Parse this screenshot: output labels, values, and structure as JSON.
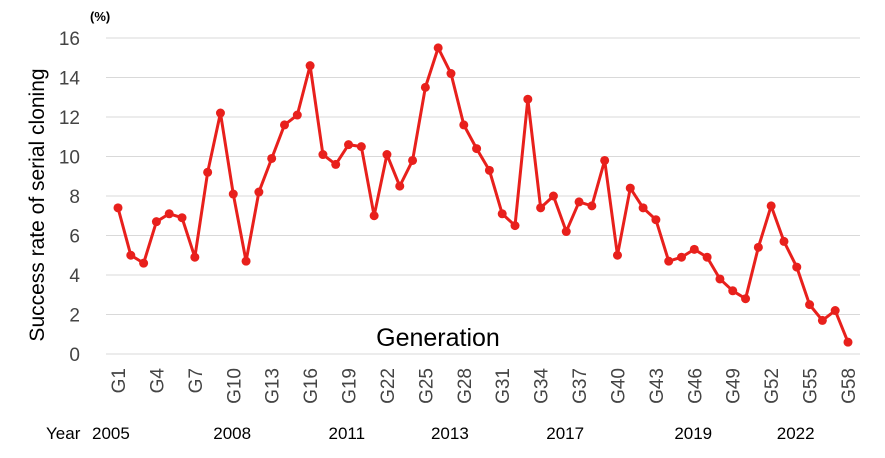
{
  "chart_data": {
    "type": "line",
    "unit_label": "(%)",
    "ylabel": "Success rate of serial cloning",
    "xlabel": "Generation",
    "ylim": [
      0,
      16
    ],
    "yticks": [
      0,
      2,
      4,
      6,
      8,
      10,
      12,
      14,
      16
    ],
    "grid": true,
    "line_color": "#e8201c",
    "grid_color": "#d9d9d9",
    "x_tick_labels": [
      "G1",
      "G4",
      "G7",
      "G10",
      "G13",
      "G16",
      "G19",
      "G22",
      "G25",
      "G28",
      "G31",
      "G34",
      "G37",
      "G40",
      "G43",
      "G46",
      "G49",
      "G52",
      "G55",
      "G58"
    ],
    "x_tick_generations": [
      1,
      4,
      7,
      10,
      13,
      16,
      19,
      22,
      25,
      28,
      31,
      34,
      37,
      40,
      43,
      46,
      49,
      52,
      55,
      58
    ],
    "year_prefix": "Year",
    "years": [
      {
        "label": "2005",
        "generation": 1
      },
      {
        "label": "2008",
        "generation": 10
      },
      {
        "label": "2011",
        "generation": 19
      },
      {
        "label": "2013",
        "generation": 27
      },
      {
        "label": "2017",
        "generation": 36
      },
      {
        "label": "2019",
        "generation": 46
      },
      {
        "label": "2022",
        "generation": 54
      }
    ],
    "series": [
      {
        "name": "Success rate",
        "generations": [
          1,
          2,
          3,
          4,
          5,
          6,
          7,
          8,
          9,
          10,
          11,
          12,
          13,
          14,
          15,
          16,
          17,
          18,
          19,
          20,
          21,
          22,
          23,
          24,
          25,
          26,
          27,
          28,
          29,
          30,
          31,
          32,
          33,
          34,
          35,
          36,
          37,
          38,
          39,
          40,
          41,
          42,
          43,
          44,
          45,
          46,
          47,
          48,
          49,
          50,
          51,
          52,
          53,
          54,
          55,
          56,
          57,
          58
        ],
        "values": [
          7.4,
          5.0,
          4.6,
          6.7,
          7.1,
          6.9,
          4.9,
          9.2,
          12.2,
          8.1,
          4.7,
          8.2,
          9.9,
          11.6,
          12.1,
          14.6,
          10.1,
          9.6,
          10.6,
          10.5,
          7.0,
          10.1,
          8.5,
          9.8,
          13.5,
          15.5,
          14.2,
          11.6,
          10.4,
          9.3,
          7.1,
          6.5,
          12.9,
          7.4,
          8.0,
          6.2,
          7.7,
          7.5,
          9.8,
          5.0,
          8.4,
          7.4,
          6.8,
          4.7,
          4.9,
          5.3,
          4.9,
          3.8,
          3.2,
          2.8,
          5.4,
          7.5,
          5.7,
          4.4,
          2.5,
          1.7,
          2.2,
          0.6
        ]
      }
    ]
  }
}
